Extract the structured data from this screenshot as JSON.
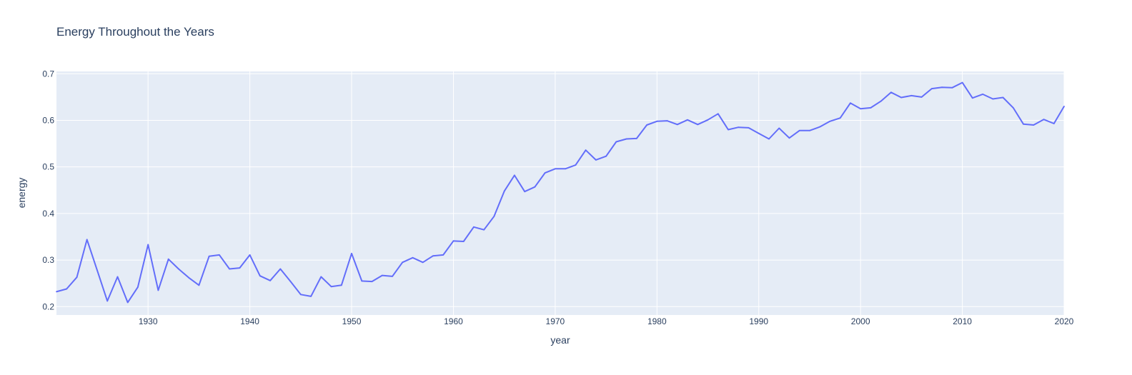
{
  "chart_data": {
    "type": "line",
    "title": "Energy Throughout the Years",
    "xlabel": "year",
    "ylabel": "energy",
    "xlim": [
      1921,
      2020
    ],
    "ylim": [
      0.182,
      0.705
    ],
    "x_ticks": [
      1930,
      1940,
      1950,
      1960,
      1970,
      1980,
      1990,
      2000,
      2010,
      2020
    ],
    "y_ticks": [
      0.2,
      0.3,
      0.4,
      0.5,
      0.6,
      0.7
    ],
    "y_tick_labels": [
      "0.2",
      "0.3",
      "0.4",
      "0.5",
      "0.6",
      "0.7"
    ],
    "grid": true,
    "legend": "none",
    "colors": {
      "line": "#636efa",
      "plot_bg": "#e5ecf6",
      "grid": "#ffffff",
      "text": "#2a3f5f"
    },
    "series": [
      {
        "x": [
          1921,
          1922,
          1923,
          1924,
          1925,
          1926,
          1927,
          1928,
          1929,
          1930,
          1931,
          1932,
          1933,
          1934,
          1935,
          1936,
          1937,
          1938,
          1939,
          1940,
          1941,
          1942,
          1943,
          1944,
          1945,
          1946,
          1947,
          1948,
          1949,
          1950,
          1951,
          1952,
          1953,
          1954,
          1955,
          1956,
          1957,
          1958,
          1959,
          1960,
          1961,
          1962,
          1963,
          1964,
          1965,
          1966,
          1967,
          1968,
          1969,
          1970,
          1971,
          1972,
          1973,
          1974,
          1975,
          1976,
          1977,
          1978,
          1979,
          1980,
          1981,
          1982,
          1983,
          1984,
          1985,
          1986,
          1987,
          1988,
          1989,
          1990,
          1991,
          1992,
          1993,
          1994,
          1995,
          1996,
          1997,
          1998,
          1999,
          2000,
          2001,
          2002,
          2003,
          2004,
          2005,
          2006,
          2007,
          2008,
          2009,
          2010,
          2011,
          2012,
          2013,
          2014,
          2015,
          2016,
          2017,
          2018,
          2019,
          2020
        ],
        "values": [
          0.232,
          0.238,
          0.263,
          0.344,
          0.278,
          0.212,
          0.264,
          0.209,
          0.242,
          0.333,
          0.235,
          0.302,
          0.281,
          0.262,
          0.246,
          0.308,
          0.311,
          0.281,
          0.283,
          0.311,
          0.266,
          0.256,
          0.281,
          0.254,
          0.226,
          0.222,
          0.264,
          0.243,
          0.246,
          0.314,
          0.255,
          0.254,
          0.267,
          0.265,
          0.295,
          0.305,
          0.295,
          0.309,
          0.311,
          0.341,
          0.34,
          0.371,
          0.365,
          0.394,
          0.448,
          0.482,
          0.447,
          0.457,
          0.487,
          0.496,
          0.496,
          0.504,
          0.536,
          0.515,
          0.523,
          0.554,
          0.56,
          0.561,
          0.59,
          0.598,
          0.599,
          0.591,
          0.601,
          0.591,
          0.601,
          0.614,
          0.58,
          0.585,
          0.584,
          0.572,
          0.56,
          0.583,
          0.562,
          0.578,
          0.578,
          0.586,
          0.598,
          0.605,
          0.637,
          0.625,
          0.627,
          0.641,
          0.66,
          0.649,
          0.653,
          0.65,
          0.668,
          0.671,
          0.67,
          0.681,
          0.648,
          0.656,
          0.646,
          0.649,
          0.627,
          0.592,
          0.59,
          0.602,
          0.593,
          0.63
        ]
      }
    ]
  }
}
